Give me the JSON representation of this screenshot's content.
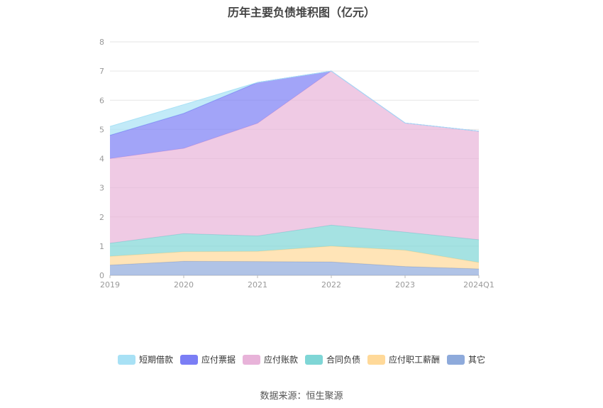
{
  "chart_data": {
    "type": "area",
    "title": "历年主要负债堆积图（亿元）",
    "categories": [
      "2019",
      "2020",
      "2021",
      "2022",
      "2023",
      "2024Q1"
    ],
    "ylim": [
      0,
      8
    ],
    "yticks": [
      "0",
      "1",
      "2",
      "3",
      "4",
      "5",
      "6",
      "7",
      "8"
    ],
    "stacked": true,
    "grid": true,
    "legend_position": "bottom",
    "series": [
      {
        "name": "其它",
        "color": "#8eaadb",
        "values": [
          0.35,
          0.48,
          0.47,
          0.46,
          0.3,
          0.22
        ]
      },
      {
        "name": "应付职工薪酬",
        "color": "#ffd999",
        "values": [
          0.3,
          0.33,
          0.35,
          0.54,
          0.56,
          0.22
        ]
      },
      {
        "name": "合同负债",
        "color": "#7fd6d6",
        "values": [
          0.45,
          0.62,
          0.53,
          0.72,
          0.62,
          0.78
        ]
      },
      {
        "name": "应付账款",
        "color": "#e8b3d9",
        "values": [
          2.9,
          2.92,
          3.86,
          5.28,
          3.74,
          3.72
        ]
      },
      {
        "name": "应付票据",
        "color": "#7b7ef5",
        "values": [
          0.8,
          1.2,
          1.4,
          0.0,
          0.0,
          0.0
        ]
      },
      {
        "name": "短期借款",
        "color": "#a8e1f5",
        "values": [
          0.3,
          0.3,
          0.0,
          0.0,
          0.0,
          0.0
        ]
      }
    ]
  },
  "legend_order": [
    "短期借款",
    "应付票据",
    "应付账款",
    "合同负债",
    "应付职工薪酬",
    "其它"
  ],
  "source": "数据来源：恒生聚源"
}
